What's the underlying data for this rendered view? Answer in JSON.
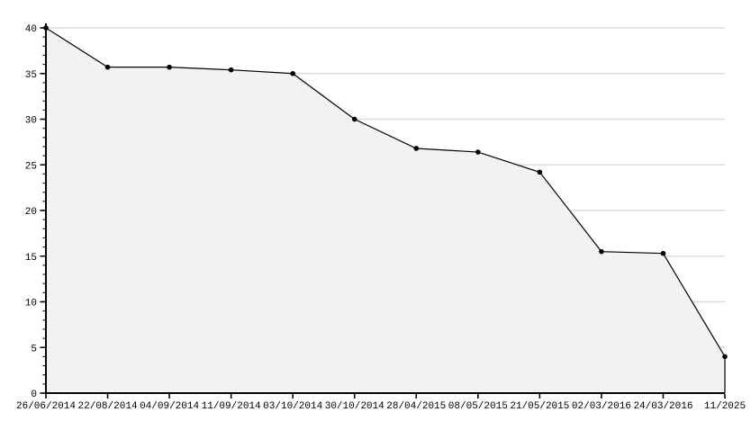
{
  "page": {
    "background": "#ffffff"
  },
  "chart_data": {
    "type": "area",
    "title": "",
    "xlabel": "",
    "ylabel": "",
    "categories": [
      "26/06/2014",
      "22/08/2014",
      "04/09/2014",
      "11/09/2014",
      "03/10/2014",
      "30/10/2014",
      "28/04/2015",
      "08/05/2015",
      "21/05/2015",
      "02/03/2016",
      "24/03/2016",
      "11/2025"
    ],
    "values": [
      40,
      35.7,
      35.7,
      35.4,
      35.0,
      30.0,
      26.8,
      26.4,
      24.2,
      15.5,
      15.3,
      4.0
    ],
    "ylim": [
      0,
      40
    ],
    "yticks": [
      0,
      5,
      10,
      15,
      20,
      25,
      30,
      35,
      40
    ],
    "y_minor_step": 1,
    "grid": "horizontal-major",
    "legend": "none",
    "marker": "small-black-dot",
    "colors": {
      "line": "#000000",
      "marker": "#000000",
      "fill": "#f2f2f2",
      "gridline": "#dcdcdc",
      "axis": "#000000",
      "text": "#000000",
      "background": "#ffffff"
    }
  }
}
